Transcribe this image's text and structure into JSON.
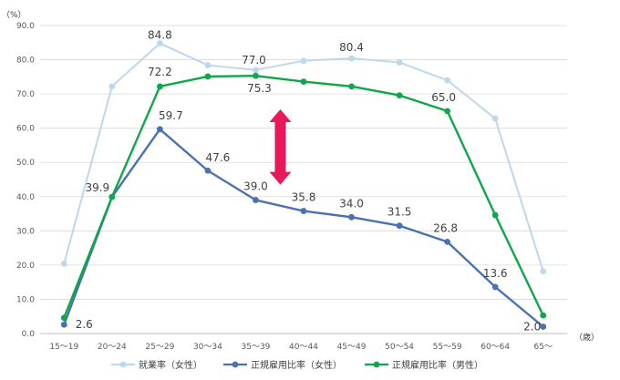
{
  "chart_data": {
    "type": "line",
    "y_unit": "（%）",
    "x_unit": "（歳）",
    "ylim": [
      0,
      90
    ],
    "yticks": [
      "0.0",
      "10.0",
      "20.0",
      "30.0",
      "40.0",
      "50.0",
      "60.0",
      "70.0",
      "80.0",
      "90.0"
    ],
    "categories": [
      "15～19",
      "20～24",
      "25～29",
      "30～34",
      "35～39",
      "40～44",
      "45～49",
      "50～54",
      "55～59",
      "60～64",
      "65～"
    ],
    "grid": true,
    "legend_position": "bottom",
    "series": [
      {
        "name": "就業率（女性）",
        "color": "#BDD7EE",
        "values": [
          20.4,
          72.2,
          84.8,
          78.4,
          77.0,
          79.7,
          80.4,
          79.2,
          74.0,
          62.8,
          18.2
        ],
        "labels": [
          null,
          null,
          "84.8",
          null,
          "77.0",
          null,
          "80.4",
          null,
          null,
          null,
          null
        ]
      },
      {
        "name": "正規雇用比率（女性）",
        "color": "#4A72B0",
        "values": [
          2.6,
          39.9,
          59.7,
          47.6,
          39.0,
          35.8,
          34.0,
          31.5,
          26.8,
          13.6,
          2.0
        ],
        "labels": [
          "2.6",
          "39.9",
          "59.7",
          "47.6",
          "39.0",
          "35.8",
          "34.0",
          "31.5",
          "26.8",
          "13.6",
          "2.0"
        ]
      },
      {
        "name": "正規雇用比率（男性）",
        "color": "#10A64A",
        "values": [
          4.6,
          39.9,
          72.2,
          75.1,
          75.3,
          73.6,
          72.2,
          69.6,
          65.0,
          34.6,
          5.3
        ],
        "labels": [
          null,
          null,
          "72.2",
          null,
          "75.3",
          null,
          null,
          null,
          "65.0",
          null,
          null
        ]
      }
    ],
    "annotation": {
      "type": "double-arrow",
      "color": "#E8195A",
      "from": 43.5,
      "to": 65.5,
      "at_category": "35～39"
    }
  }
}
